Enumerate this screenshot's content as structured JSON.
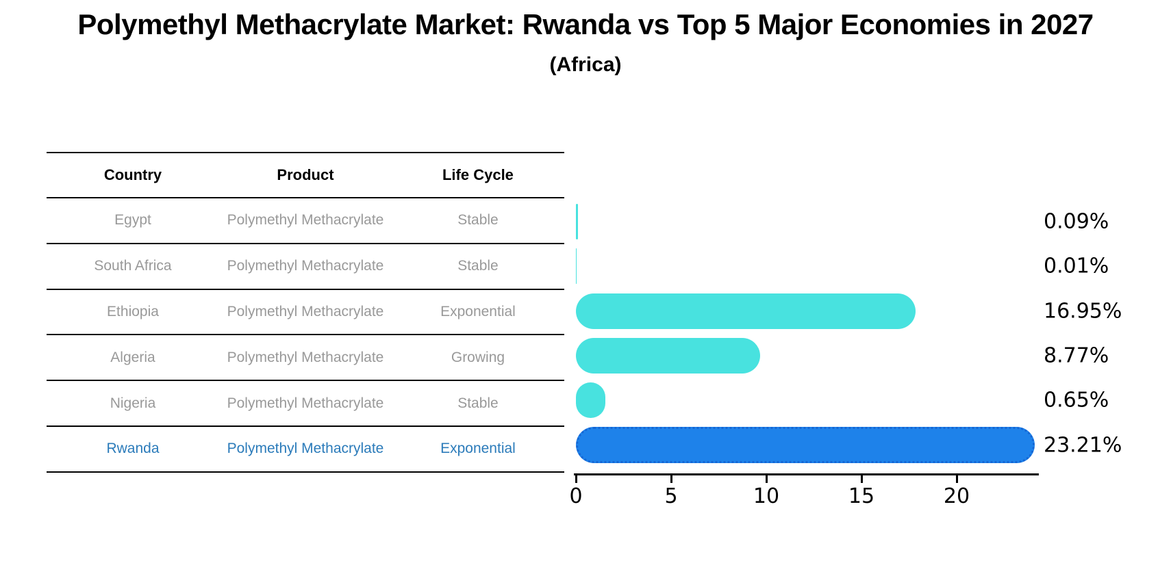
{
  "title": "Polymethyl Methacrylate Market: Rwanda vs Top 5 Major Economies in 2027",
  "subtitle": "(Africa)",
  "table": {
    "headers": [
      "Country",
      "Product",
      "Life Cycle"
    ],
    "rows": [
      {
        "country": "Egypt",
        "product": "Polymethyl Methacrylate",
        "life_cycle": "Stable",
        "highlighted": false
      },
      {
        "country": "South Africa",
        "product": "Polymethyl Methacrylate",
        "life_cycle": "Stable",
        "highlighted": false
      },
      {
        "country": "Ethiopia",
        "product": "Polymethyl Methacrylate",
        "life_cycle": "Exponential",
        "highlighted": false
      },
      {
        "country": "Algeria",
        "product": "Polymethyl Methacrylate",
        "life_cycle": "Growing",
        "highlighted": false
      },
      {
        "country": "Nigeria",
        "product": "Polymethyl Methacrylate",
        "life_cycle": "Stable",
        "highlighted": false
      },
      {
        "country": "Rwanda",
        "product": "Polymethyl Methacrylate",
        "life_cycle": "Exponential",
        "highlighted": true
      }
    ]
  },
  "chart_data": {
    "type": "bar",
    "orientation": "horizontal",
    "title": "Polymethyl Methacrylate Market: Rwanda vs Top 5 Major Economies in 2027",
    "subtitle": "(Africa)",
    "categories": [
      "Egypt",
      "South Africa",
      "Ethiopia",
      "Algeria",
      "Nigeria",
      "Rwanda"
    ],
    "values": [
      0.09,
      0.01,
      16.95,
      8.77,
      0.65,
      23.21
    ],
    "value_labels": [
      "0.09%",
      "0.01%",
      "16.95%",
      "8.77%",
      "0.65%",
      "23.21%"
    ],
    "x_tick_labels": [
      "0",
      "5",
      "10",
      "15",
      "20"
    ],
    "x_tick_values": [
      0,
      5,
      10,
      15,
      20
    ],
    "xlim": [
      0,
      24.3
    ],
    "grid": false,
    "legend": false
  },
  "colors": {
    "background": "#ffffff",
    "bar_default": "#48e2df",
    "bar_highlight": "#1e82ea",
    "bar_highlight_border": "#1566d4",
    "highlight_text": "#2b7bba",
    "table_text": "#999999",
    "header_text": "#000000",
    "axis": "#000000"
  }
}
